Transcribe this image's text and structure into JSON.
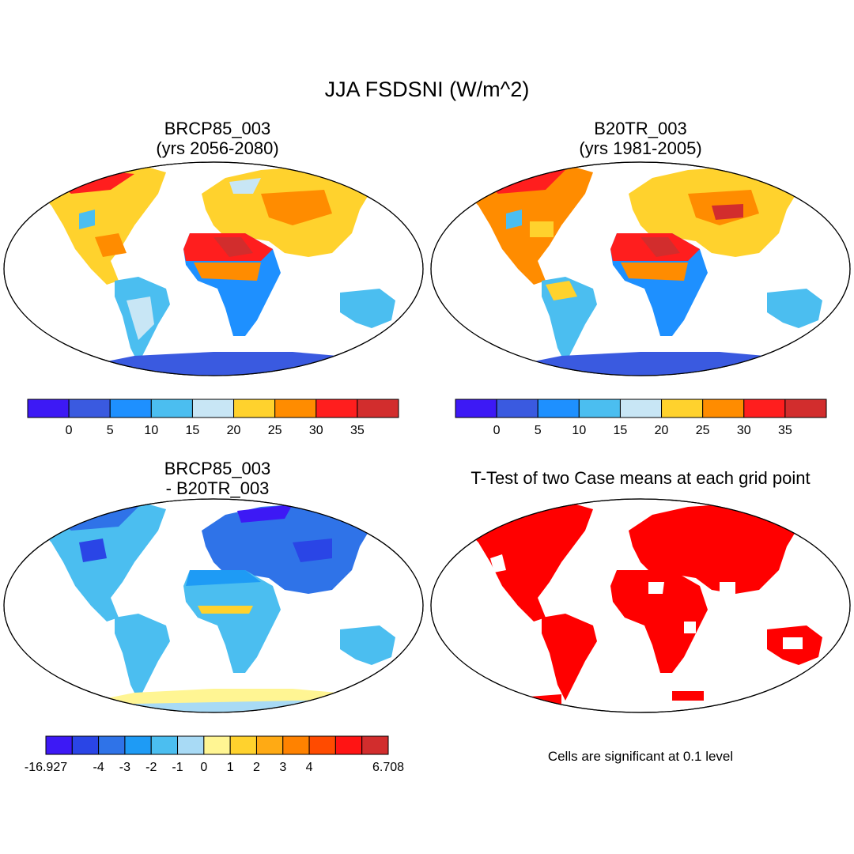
{
  "figure": {
    "title": "JJA FSDSNI (W/m^2)",
    "colors": {
      "ocean": "#ffffff",
      "outline": "#000000",
      "significant": "#ff0000"
    }
  },
  "panels": {
    "top_left": {
      "title_line1": "BRCP85_003",
      "title_line2": "(yrs 2056-2080)"
    },
    "top_right": {
      "title_line1": "B20TR_003",
      "title_line2": "(yrs 1981-2005)"
    },
    "bottom_left": {
      "title_line1": "BRCP85_003",
      "title_line2": "- B20TR_003"
    },
    "bottom_right": {
      "title": "T-Test of two Case means at each grid point",
      "note": "Cells are significant at 0.1 level"
    }
  },
  "colorbars": {
    "absolute": {
      "colors": [
        "#3d19f5",
        "#3a5ae0",
        "#1e90ff",
        "#4bbef0",
        "#c8e6f5",
        "#ffd22d",
        "#ff8c00",
        "#ff1e1e",
        "#d22d2d"
      ],
      "labels": [
        "0",
        "5",
        "10",
        "15",
        "20",
        "25",
        "30",
        "35"
      ]
    },
    "difference": {
      "colors": [
        "#3d19f5",
        "#2a45e6",
        "#2f73e8",
        "#1e9bf5",
        "#4bbef0",
        "#a8daf5",
        "#fff593",
        "#ffd22d",
        "#ffaa14",
        "#ff8200",
        "#ff4b00",
        "#ff1414",
        "#d22d2d"
      ],
      "labels": [
        "-16.927",
        "-4",
        "-3",
        "-2",
        "-1",
        "0",
        "1",
        "2",
        "3",
        "4",
        "6.708"
      ]
    }
  }
}
